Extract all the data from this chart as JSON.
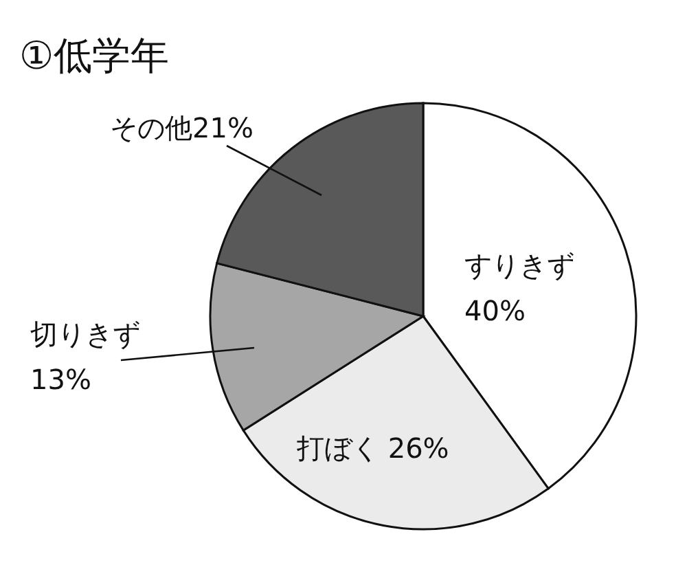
{
  "chart_data": {
    "type": "pie",
    "title": "①低学年",
    "categories": [
      "すりきず",
      "打ぼく",
      "切りきず",
      "その他"
    ],
    "values": [
      40,
      26,
      13,
      21
    ],
    "value_labels": [
      "40%",
      "26%",
      "13%",
      "21%"
    ],
    "colors": [
      "#ffffff",
      "#ebebeb",
      "#a6a6a6",
      "#595959"
    ]
  }
}
